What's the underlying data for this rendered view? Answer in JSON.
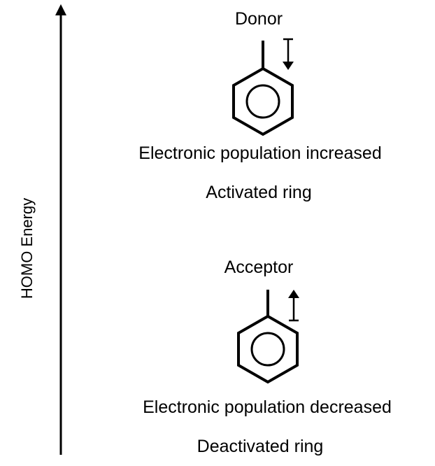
{
  "axis_label": "HOMO Energy",
  "donor": {
    "label": "Donor",
    "lines": [
      "Electronic population increased",
      "Activated ring"
    ]
  },
  "acceptor": {
    "label": "Acceptor",
    "lines": [
      "Electronic population decreased",
      "Deactivated ring"
    ]
  }
}
